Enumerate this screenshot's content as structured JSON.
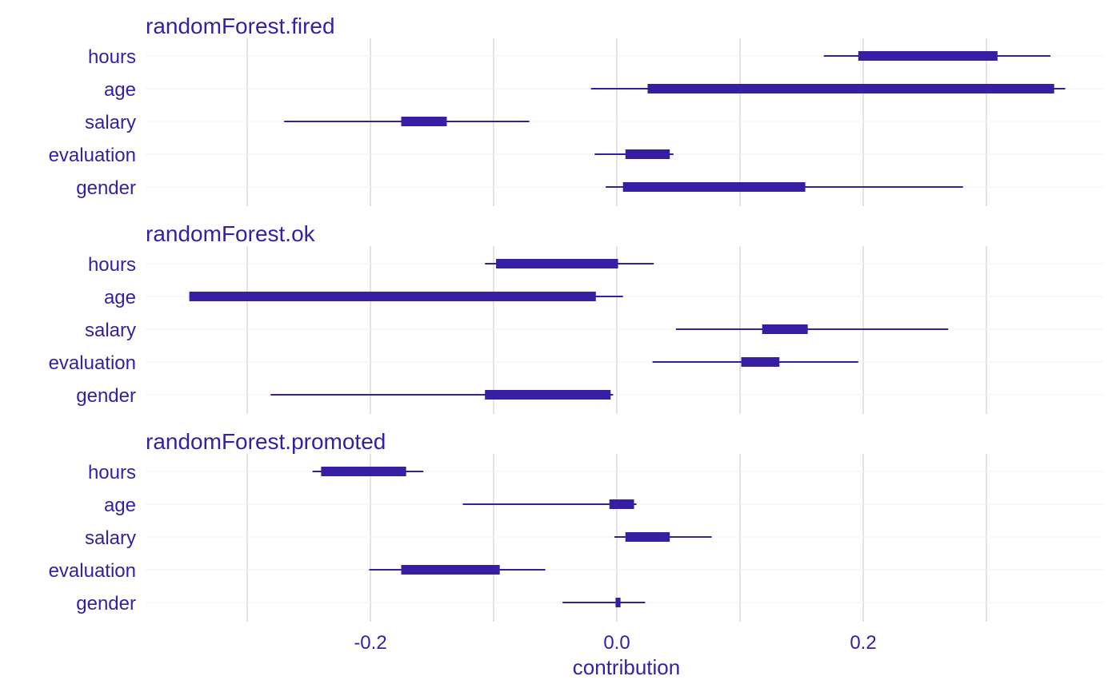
{
  "chart_data": {
    "type": "boxplot",
    "xlabel": "contribution",
    "x_ticks": [
      -0.2,
      0.0,
      0.2
    ],
    "x_tick_labels": [
      "-0.2",
      "0.0",
      "0.2"
    ],
    "xlim": [
      -0.383,
      0.395
    ],
    "grid": true,
    "colors": {
      "bar": "#371ea3",
      "text": "#371ea3",
      "grid_major": "#e3e3e3",
      "grid_minor": "#f0f0f0"
    },
    "categories": [
      "hours",
      "age",
      "salary",
      "evaluation",
      "gender"
    ],
    "panels": [
      {
        "title": "randomForest.fired",
        "rows": [
          {
            "label": "hours",
            "min": 0.168,
            "q1": 0.196,
            "q3": 0.309,
            "max": 0.352
          },
          {
            "label": "age",
            "min": -0.021,
            "q1": 0.025,
            "q3": 0.355,
            "max": 0.364
          },
          {
            "label": "salary",
            "min": -0.27,
            "q1": -0.175,
            "q3": -0.138,
            "max": -0.071
          },
          {
            "label": "evaluation",
            "min": -0.018,
            "q1": 0.007,
            "q3": 0.043,
            "max": 0.046
          },
          {
            "label": "gender",
            "min": -0.009,
            "q1": 0.005,
            "q3": 0.153,
            "max": 0.281
          }
        ]
      },
      {
        "title": "randomForest.ok",
        "rows": [
          {
            "label": "hours",
            "min": -0.107,
            "q1": -0.098,
            "q3": 0.001,
            "max": 0.03
          },
          {
            "label": "age",
            "min": -0.347,
            "q1": -0.347,
            "q3": -0.017,
            "max": 0.005
          },
          {
            "label": "salary",
            "min": 0.048,
            "q1": 0.118,
            "q3": 0.155,
            "max": 0.269
          },
          {
            "label": "evaluation",
            "min": 0.029,
            "q1": 0.101,
            "q3": 0.132,
            "max": 0.196
          },
          {
            "label": "gender",
            "min": -0.281,
            "q1": -0.107,
            "q3": -0.005,
            "max": -0.003
          }
        ]
      },
      {
        "title": "randomForest.promoted",
        "rows": [
          {
            "label": "hours",
            "min": -0.247,
            "q1": -0.24,
            "q3": -0.171,
            "max": -0.157
          },
          {
            "label": "age",
            "min": -0.125,
            "q1": -0.006,
            "q3": 0.014,
            "max": 0.016
          },
          {
            "label": "salary",
            "min": -0.002,
            "q1": 0.007,
            "q3": 0.043,
            "max": 0.077
          },
          {
            "label": "evaluation",
            "min": -0.201,
            "q1": -0.175,
            "q3": -0.095,
            "max": -0.058
          },
          {
            "label": "gender",
            "min": -0.044,
            "q1": -0.001,
            "q3": 0.003,
            "max": 0.023
          }
        ]
      }
    ]
  }
}
